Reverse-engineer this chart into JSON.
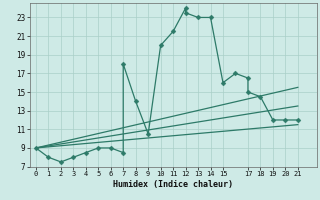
{
  "xlabel": "Humidex (Indice chaleur)",
  "bg_color": "#ceeae6",
  "line_color": "#2d7a68",
  "grid_color": "#aacfc8",
  "xlim": [
    -0.5,
    22.5
  ],
  "ylim": [
    7,
    24.5
  ],
  "xticks": [
    0,
    1,
    2,
    3,
    4,
    5,
    6,
    7,
    8,
    9,
    10,
    11,
    12,
    13,
    14,
    15,
    17,
    18,
    19,
    20,
    21
  ],
  "yticks": [
    7,
    9,
    11,
    13,
    15,
    17,
    19,
    21,
    23
  ],
  "main_line": {
    "x": [
      0,
      1,
      2,
      3,
      4,
      5,
      6,
      7,
      7,
      8,
      9,
      10,
      11,
      12,
      12,
      13,
      14,
      15,
      16,
      17,
      17,
      18,
      19,
      20,
      21
    ],
    "y": [
      9,
      8,
      7.5,
      8,
      8.5,
      9,
      9,
      8.5,
      18,
      14,
      10.5,
      20,
      21.5,
      24,
      23.5,
      23,
      23,
      16,
      17,
      16.5,
      15,
      14.5,
      12,
      12,
      12
    ]
  },
  "line2": {
    "x": [
      0,
      21
    ],
    "y": [
      9,
      15.5
    ]
  },
  "line3": {
    "x": [
      0,
      21
    ],
    "y": [
      9,
      13.5
    ]
  },
  "line4": {
    "x": [
      0,
      21
    ],
    "y": [
      9,
      11.5
    ]
  },
  "marker_size": 2.5,
  "line_width": 0.9
}
